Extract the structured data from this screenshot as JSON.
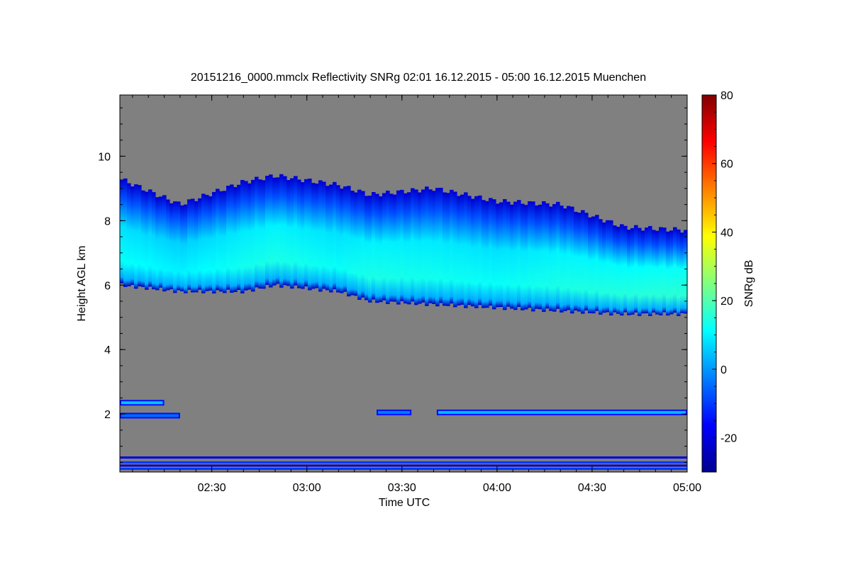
{
  "chart_data": {
    "type": "heatmap",
    "title": "20151216_0000.mmclx Reflectivity SNRg   02:01 16.12.2015 - 05:00 16.12.2015 Muenchen",
    "xlabel": "Time UTC",
    "ylabel": "Height AGL km",
    "colorbar_label": "SNRg dB",
    "xlim": [
      "02:01",
      "05:00"
    ],
    "ylim": [
      0.2,
      11.9
    ],
    "clim": [
      -30,
      80
    ],
    "x_ticks": [
      "02:30",
      "03:00",
      "03:30",
      "04:00",
      "04:30",
      "05:00"
    ],
    "y_ticks": [
      2,
      4,
      6,
      8,
      10
    ],
    "colorbar_ticks": [
      -20,
      0,
      20,
      40,
      60,
      80
    ],
    "background_color": "#808080",
    "colormap": [
      "#00008f",
      "#0000ff",
      "#0080ff",
      "#00ffff",
      "#80ff80",
      "#ffff00",
      "#ff8000",
      "#ff0000",
      "#800000"
    ],
    "cloud_layer": {
      "description_free": true,
      "time": [
        "02:01",
        "02:20",
        "02:40",
        "02:50",
        "03:10",
        "03:20",
        "03:40",
        "04:00",
        "04:20",
        "04:40",
        "05:00"
      ],
      "top_km": [
        9.3,
        8.5,
        9.2,
        9.4,
        9.1,
        8.8,
        9.0,
        8.6,
        8.5,
        7.8,
        7.7
      ],
      "base_km": [
        6.0,
        5.8,
        5.8,
        6.0,
        5.8,
        5.5,
        5.4,
        5.3,
        5.2,
        5.1,
        5.1
      ],
      "peak_snr_db": [
        12,
        10,
        13,
        14,
        12,
        14,
        13,
        12,
        14,
        15,
        16
      ]
    },
    "low_layers": [
      {
        "start": "02:01",
        "end": "02:15",
        "height_km": 2.35,
        "snr_db": 5
      },
      {
        "start": "02:01",
        "end": "02:20",
        "height_km": 1.95,
        "snr_db": -5
      },
      {
        "start": "03:22",
        "end": "03:33",
        "height_km": 2.05,
        "snr_db": -3
      },
      {
        "start": "03:41",
        "end": "05:00",
        "height_km": 2.05,
        "snr_db": 4
      }
    ],
    "near_ground_bands_km": [
      0.65,
      0.5,
      0.4,
      0.3
    ]
  }
}
